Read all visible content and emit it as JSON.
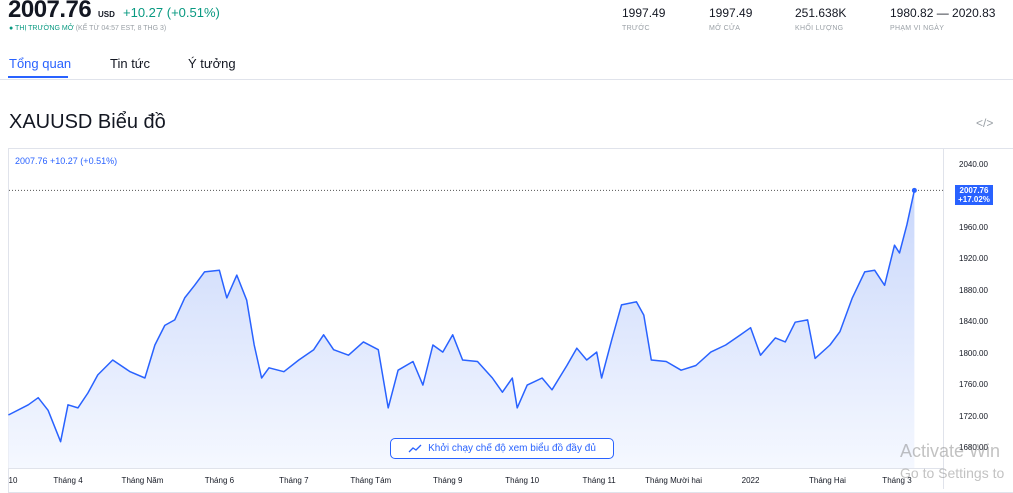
{
  "header": {
    "price": "2007.76",
    "currency": "USD",
    "change": "+10.27 (+0.51%)",
    "market_status": "THỊ TRƯỜNG MỞ",
    "market_time": "(KỂ TỪ 04:57 EST, 8 THG 3)",
    "stats": [
      {
        "value": "1997.49",
        "label": "TRƯỚC"
      },
      {
        "value": "1997.49",
        "label": "MỞ CỬA"
      },
      {
        "value": "251.638K",
        "label": "KHỐI LƯỢNG"
      },
      {
        "value": "1980.82 — 2020.83",
        "label": "PHẠM VI NGÀY"
      }
    ]
  },
  "tabs": [
    {
      "label": "Tổng quan",
      "active": true
    },
    {
      "label": "Tin tức",
      "active": false
    },
    {
      "label": "Ý tưởng",
      "active": false
    }
  ],
  "section_title": "XAUUSD Biểu đồ",
  "embed_icon": "code-icon",
  "full_chart_button": {
    "label": "Khởi chạy chế độ xem biểu đồ đầy đủ",
    "icon": "line-chart-icon"
  },
  "watermark": {
    "line1": "Activate Win",
    "line2": "Go to Settings to"
  },
  "colors": {
    "accent": "#2962ff",
    "positive": "#089981",
    "fill_top": "#c9d7fb"
  },
  "chart_data": {
    "type": "area",
    "legend_text": "2007.76 +10.27 (+0.51%)",
    "last_value_label": "2007.76",
    "last_change_label": "+17.02%",
    "ylim": [
      1680,
      2040
    ],
    "yticks": [
      "2040.00",
      "1960.00",
      "1920.00",
      "1880.00",
      "1840.00",
      "1800.00",
      "1760.00",
      "1720.00",
      "1680.00"
    ],
    "xticks": [
      {
        "label": "10",
        "date": "2021-03-10"
      },
      {
        "label": "Tháng 4",
        "date": "2021-04-01"
      },
      {
        "label": "Tháng Năm",
        "date": "2021-05-01"
      },
      {
        "label": "Tháng 6",
        "date": "2021-06-01"
      },
      {
        "label": "Tháng 7",
        "date": "2021-07-01"
      },
      {
        "label": "Tháng Tám",
        "date": "2021-08-01"
      },
      {
        "label": "Tháng 9",
        "date": "2021-09-01"
      },
      {
        "label": "Tháng 10",
        "date": "2021-10-01"
      },
      {
        "label": "Tháng 11",
        "date": "2021-11-01"
      },
      {
        "label": "Tháng Mười hai",
        "date": "2021-12-01"
      },
      {
        "label": "2022",
        "date": "2022-01-01"
      },
      {
        "label": "Tháng Hai",
        "date": "2022-02-01"
      },
      {
        "label": "Tháng 3",
        "date": "2022-03-01"
      }
    ],
    "grid": false,
    "series": [
      {
        "points": [
          [
            "2021-03-08",
            1722
          ],
          [
            "2021-03-16",
            1735
          ],
          [
            "2021-03-20",
            1744
          ],
          [
            "2021-03-24",
            1728
          ],
          [
            "2021-03-29",
            1688
          ],
          [
            "2021-04-01",
            1735
          ],
          [
            "2021-04-05",
            1731
          ],
          [
            "2021-04-09",
            1750
          ],
          [
            "2021-04-13",
            1773
          ],
          [
            "2021-04-19",
            1792
          ],
          [
            "2021-04-26",
            1777
          ],
          [
            "2021-05-02",
            1769
          ],
          [
            "2021-05-06",
            1811
          ],
          [
            "2021-05-10",
            1836
          ],
          [
            "2021-05-14",
            1843
          ],
          [
            "2021-05-18",
            1871
          ],
          [
            "2021-05-22",
            1887
          ],
          [
            "2021-05-26",
            1904
          ],
          [
            "2021-06-01",
            1906
          ],
          [
            "2021-06-04",
            1871
          ],
          [
            "2021-06-08",
            1900
          ],
          [
            "2021-06-12",
            1868
          ],
          [
            "2021-06-15",
            1811
          ],
          [
            "2021-06-18",
            1769
          ],
          [
            "2021-06-21",
            1782
          ],
          [
            "2021-06-27",
            1777
          ],
          [
            "2021-07-03",
            1792
          ],
          [
            "2021-07-09",
            1805
          ],
          [
            "2021-07-13",
            1824
          ],
          [
            "2021-07-17",
            1805
          ],
          [
            "2021-07-23",
            1798
          ],
          [
            "2021-07-29",
            1815
          ],
          [
            "2021-08-04",
            1805
          ],
          [
            "2021-08-08",
            1731
          ],
          [
            "2021-08-12",
            1779
          ],
          [
            "2021-08-18",
            1790
          ],
          [
            "2021-08-22",
            1760
          ],
          [
            "2021-08-26",
            1811
          ],
          [
            "2021-08-30",
            1802
          ],
          [
            "2021-09-03",
            1824
          ],
          [
            "2021-09-07",
            1792
          ],
          [
            "2021-09-13",
            1790
          ],
          [
            "2021-09-19",
            1769
          ],
          [
            "2021-09-23",
            1751
          ],
          [
            "2021-09-27",
            1769
          ],
          [
            "2021-09-29",
            1731
          ],
          [
            "2021-10-03",
            1760
          ],
          [
            "2021-10-09",
            1769
          ],
          [
            "2021-10-13",
            1754
          ],
          [
            "2021-10-19",
            1785
          ],
          [
            "2021-10-23",
            1807
          ],
          [
            "2021-10-27",
            1792
          ],
          [
            "2021-10-31",
            1802
          ],
          [
            "2021-11-02",
            1769
          ],
          [
            "2021-11-06",
            1817
          ],
          [
            "2021-11-10",
            1862
          ],
          [
            "2021-11-16",
            1866
          ],
          [
            "2021-11-19",
            1849
          ],
          [
            "2021-11-22",
            1792
          ],
          [
            "2021-11-28",
            1790
          ],
          [
            "2021-12-04",
            1779
          ],
          [
            "2021-12-10",
            1785
          ],
          [
            "2021-12-16",
            1802
          ],
          [
            "2021-12-22",
            1811
          ],
          [
            "2021-12-28",
            1824
          ],
          [
            "2022-01-01",
            1833
          ],
          [
            "2022-01-05",
            1798
          ],
          [
            "2022-01-11",
            1820
          ],
          [
            "2022-01-15",
            1815
          ],
          [
            "2022-01-19",
            1840
          ],
          [
            "2022-01-24",
            1843
          ],
          [
            "2022-01-27",
            1794
          ],
          [
            "2022-02-02",
            1811
          ],
          [
            "2022-02-06",
            1828
          ],
          [
            "2022-02-11",
            1871
          ],
          [
            "2022-02-16",
            1904
          ],
          [
            "2022-02-20",
            1906
          ],
          [
            "2022-02-24",
            1887
          ],
          [
            "2022-02-28",
            1938
          ],
          [
            "2022-03-02",
            1928
          ],
          [
            "2022-03-05",
            1964
          ],
          [
            "2022-03-08",
            2007.76
          ]
        ]
      }
    ]
  }
}
